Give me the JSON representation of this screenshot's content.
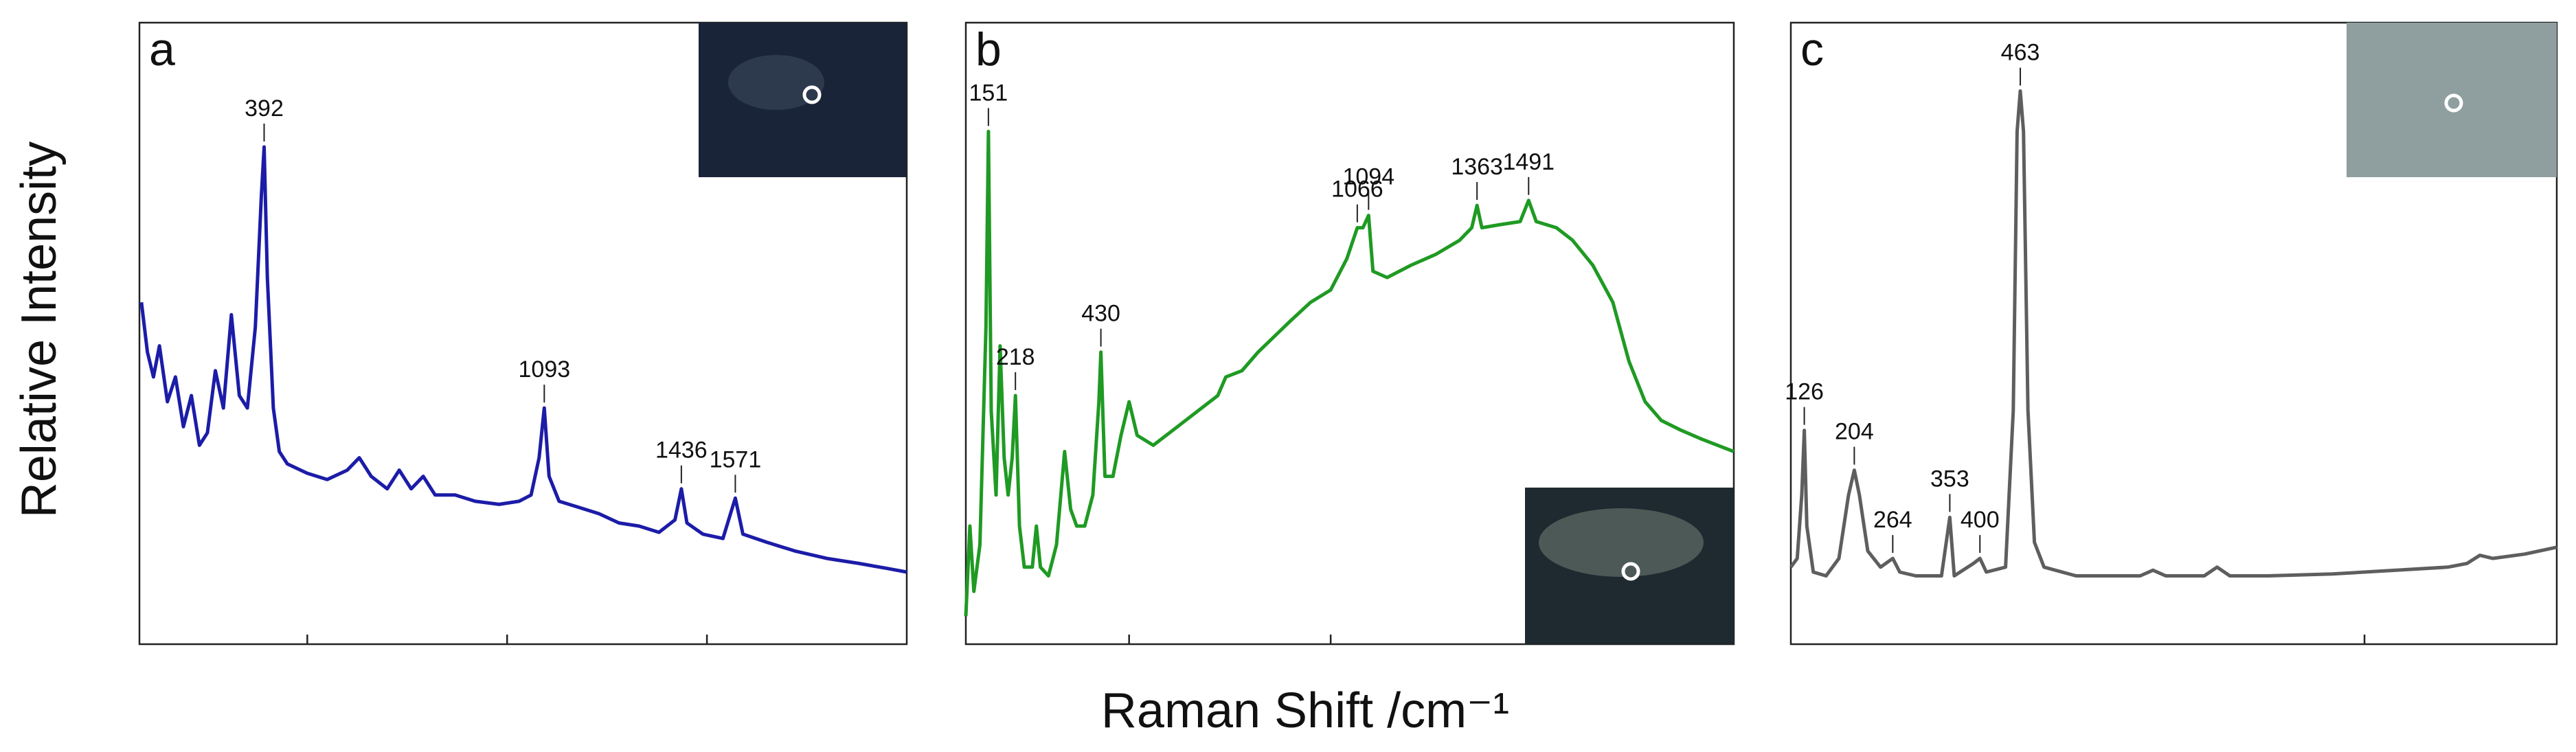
{
  "y_label": "Relative Intensity",
  "x_label": "Raman Shift /cm⁻¹",
  "chart_data": [
    {
      "type": "line",
      "panel": "a",
      "color": "#1c1ca8",
      "xlim": [
        80,
        2000
      ],
      "xticks": [
        500,
        1000,
        1500
      ],
      "ylim": [
        0,
        100
      ],
      "x": [
        85,
        100,
        115,
        130,
        150,
        170,
        190,
        210,
        230,
        250,
        270,
        290,
        310,
        330,
        350,
        370,
        385,
        392,
        400,
        415,
        430,
        450,
        500,
        550,
        600,
        630,
        660,
        700,
        730,
        760,
        790,
        820,
        870,
        920,
        980,
        1030,
        1060,
        1080,
        1093,
        1105,
        1130,
        1180,
        1230,
        1280,
        1330,
        1380,
        1420,
        1436,
        1450,
        1490,
        1540,
        1571,
        1590,
        1650,
        1720,
        1800,
        1880,
        1950,
        2000
      ],
      "values": [
        55,
        47,
        43,
        48,
        39,
        43,
        35,
        40,
        32,
        34,
        44,
        38,
        53,
        40,
        38,
        51,
        72,
        80,
        59,
        38,
        31,
        29,
        27.5,
        26.5,
        28,
        30,
        27,
        25,
        28,
        25,
        27,
        24,
        24,
        23,
        22.5,
        23,
        24,
        30,
        38,
        27,
        23,
        22,
        21,
        19.5,
        19,
        18,
        20,
        25,
        19.5,
        17.7,
        17,
        23.5,
        17.7,
        16.4,
        15,
        13.8,
        13,
        12.2,
        11.6
      ],
      "peaks": [
        392,
        1093,
        1436,
        1571
      ]
    },
    {
      "type": "line",
      "panel": "b",
      "color": "#1f9a23",
      "xlim": [
        95,
        2000
      ],
      "xticks": [
        500,
        1000,
        1500
      ],
      "ylim": [
        0,
        100
      ],
      "x": [
        95,
        105,
        115,
        130,
        145,
        151,
        158,
        170,
        180,
        190,
        200,
        210,
        218,
        228,
        240,
        260,
        270,
        280,
        300,
        320,
        340,
        355,
        370,
        390,
        410,
        425,
        430,
        440,
        460,
        480,
        500,
        520,
        560,
        620,
        680,
        720,
        740,
        780,
        820,
        860,
        900,
        950,
        1000,
        1040,
        1066,
        1080,
        1094,
        1105,
        1140,
        1200,
        1260,
        1320,
        1350,
        1363,
        1375,
        1420,
        1470,
        1491,
        1510,
        1560,
        1600,
        1650,
        1700,
        1740,
        1780,
        1820,
        1870,
        1920,
        1960,
        2000
      ],
      "values": [
        4.5,
        19,
        8.5,
        16,
        51,
        82.5,
        37.5,
        24,
        48,
        30,
        24,
        30,
        40,
        19,
        12.4,
        12.4,
        19,
        12.4,
        11,
        16,
        31,
        21.7,
        19,
        19,
        24,
        39,
        47,
        27,
        27,
        33.6,
        39,
        33.6,
        32,
        35,
        38,
        40,
        43,
        44,
        47,
        49.5,
        52,
        55,
        57,
        62,
        67,
        67,
        69,
        60,
        59,
        61,
        62.7,
        65,
        67,
        70.6,
        67,
        67.5,
        68,
        71.4,
        68,
        67,
        65,
        61,
        55,
        45.5,
        39,
        36,
        34.4,
        33,
        32,
        31
      ],
      "peaks": [
        151,
        218,
        430,
        1066,
        1094,
        1363,
        1491
      ]
    },
    {
      "type": "line",
      "panel": "c",
      "color": "#5e5e5e",
      "xlim": [
        105,
        1300
      ],
      "xticks": [
        1000
      ],
      "ylim": [
        0,
        100
      ],
      "x": [
        105,
        115,
        122,
        126,
        130,
        140,
        160,
        180,
        195,
        204,
        212,
        225,
        245,
        264,
        275,
        300,
        340,
        353,
        360,
        390,
        400,
        410,
        440,
        452,
        458,
        463,
        468,
        475,
        485,
        500,
        550,
        600,
        650,
        670,
        690,
        750,
        770,
        790,
        850,
        950,
        1050,
        1130,
        1160,
        1180,
        1200,
        1250,
        1300
      ],
      "values": [
        12.4,
        13.8,
        24,
        34.4,
        19,
        11.6,
        11,
        13.8,
        24,
        28,
        24,
        15,
        12.4,
        13.8,
        11.6,
        11,
        11,
        20.4,
        11,
        13,
        13.8,
        11.6,
        12.4,
        37.6,
        82.5,
        89,
        82.5,
        37.6,
        16.4,
        12.4,
        11,
        11,
        11,
        11.9,
        11,
        11,
        12.4,
        11,
        11,
        11.3,
        11.9,
        12.4,
        13,
        14.3,
        13.8,
        14.5,
        15.6
      ],
      "peaks": [
        126,
        204,
        264,
        353,
        400,
        463
      ]
    }
  ]
}
